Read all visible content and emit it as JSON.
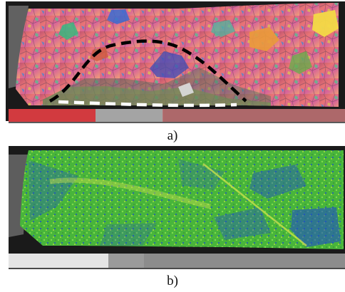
{
  "figure": {
    "panels": [
      {
        "label": "a)",
        "map_type": "orientation-map",
        "overlays": [
          "black-dashed-boundary",
          "white-dashed-boundary"
        ]
      },
      {
        "label": "b)",
        "map_type": "strain-map"
      }
    ],
    "colors": {
      "background_dark": "#1a1a1a",
      "scale_bar_red": "#d23a3f",
      "scale_bar_gray": "#8e8e8e",
      "strain_green": "#49b83b",
      "strain_blue": "#1f4fc6",
      "strain_yellow": "#c9e14b",
      "dash_black": "#000000",
      "dash_white": "#ffffff"
    }
  }
}
